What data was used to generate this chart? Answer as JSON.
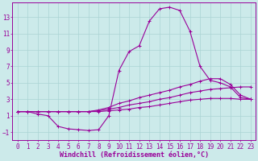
{
  "xlabel": "Windchill (Refroidissement éolien,°C)",
  "background_color": "#cceaea",
  "line_color": "#990099",
  "grid_color": "#aad4d4",
  "xticks": [
    0,
    1,
    2,
    3,
    4,
    5,
    6,
    7,
    8,
    9,
    10,
    11,
    12,
    13,
    14,
    15,
    16,
    17,
    18,
    19,
    20,
    21,
    22,
    23
  ],
  "yticks": [
    -1,
    1,
    3,
    5,
    7,
    9,
    11,
    13
  ],
  "xlim": [
    -0.5,
    23.5
  ],
  "ylim": [
    -2.0,
    14.8
  ],
  "curve1_x": [
    0,
    1,
    2,
    3,
    4,
    5,
    6,
    7,
    8,
    9,
    10,
    11,
    12,
    13,
    14,
    15,
    16,
    17,
    18,
    19,
    20,
    21,
    22,
    23
  ],
  "curve1_y": [
    1.5,
    1.5,
    1.2,
    1.0,
    -0.3,
    -0.6,
    -0.7,
    -0.8,
    -0.7,
    1.0,
    6.5,
    8.8,
    9.5,
    12.5,
    14.0,
    14.2,
    13.8,
    11.3,
    7.0,
    5.3,
    5.0,
    4.5,
    3.2,
    3.0
  ],
  "curve2_x": [
    0,
    1,
    2,
    3,
    4,
    5,
    6,
    7,
    8,
    9,
    10,
    11,
    12,
    13,
    14,
    15,
    16,
    17,
    18,
    19,
    20,
    21,
    22,
    23
  ],
  "curve2_y": [
    1.5,
    1.5,
    1.5,
    1.5,
    1.5,
    1.5,
    1.5,
    1.5,
    1.7,
    2.0,
    2.5,
    2.8,
    3.2,
    3.5,
    3.8,
    4.1,
    4.5,
    4.8,
    5.2,
    5.5,
    5.5,
    4.8,
    3.5,
    3.0
  ],
  "curve3_x": [
    0,
    1,
    2,
    3,
    4,
    5,
    6,
    7,
    8,
    9,
    10,
    11,
    12,
    13,
    14,
    15,
    16,
    17,
    18,
    19,
    20,
    21,
    22,
    23
  ],
  "curve3_y": [
    1.5,
    1.5,
    1.5,
    1.5,
    1.5,
    1.5,
    1.5,
    1.5,
    1.6,
    1.8,
    2.0,
    2.3,
    2.5,
    2.7,
    3.0,
    3.2,
    3.5,
    3.8,
    4.0,
    4.2,
    4.3,
    4.4,
    4.5,
    4.5
  ],
  "curve4_x": [
    0,
    1,
    2,
    3,
    4,
    5,
    6,
    7,
    8,
    9,
    10,
    11,
    12,
    13,
    14,
    15,
    16,
    17,
    18,
    19,
    20,
    21,
    22,
    23
  ],
  "curve4_y": [
    1.5,
    1.5,
    1.5,
    1.5,
    1.5,
    1.5,
    1.5,
    1.5,
    1.5,
    1.6,
    1.7,
    1.8,
    2.0,
    2.1,
    2.3,
    2.5,
    2.7,
    2.9,
    3.0,
    3.1,
    3.1,
    3.1,
    3.0,
    3.0
  ],
  "xlabel_fontsize": 6.0,
  "tick_fontsize": 5.5
}
